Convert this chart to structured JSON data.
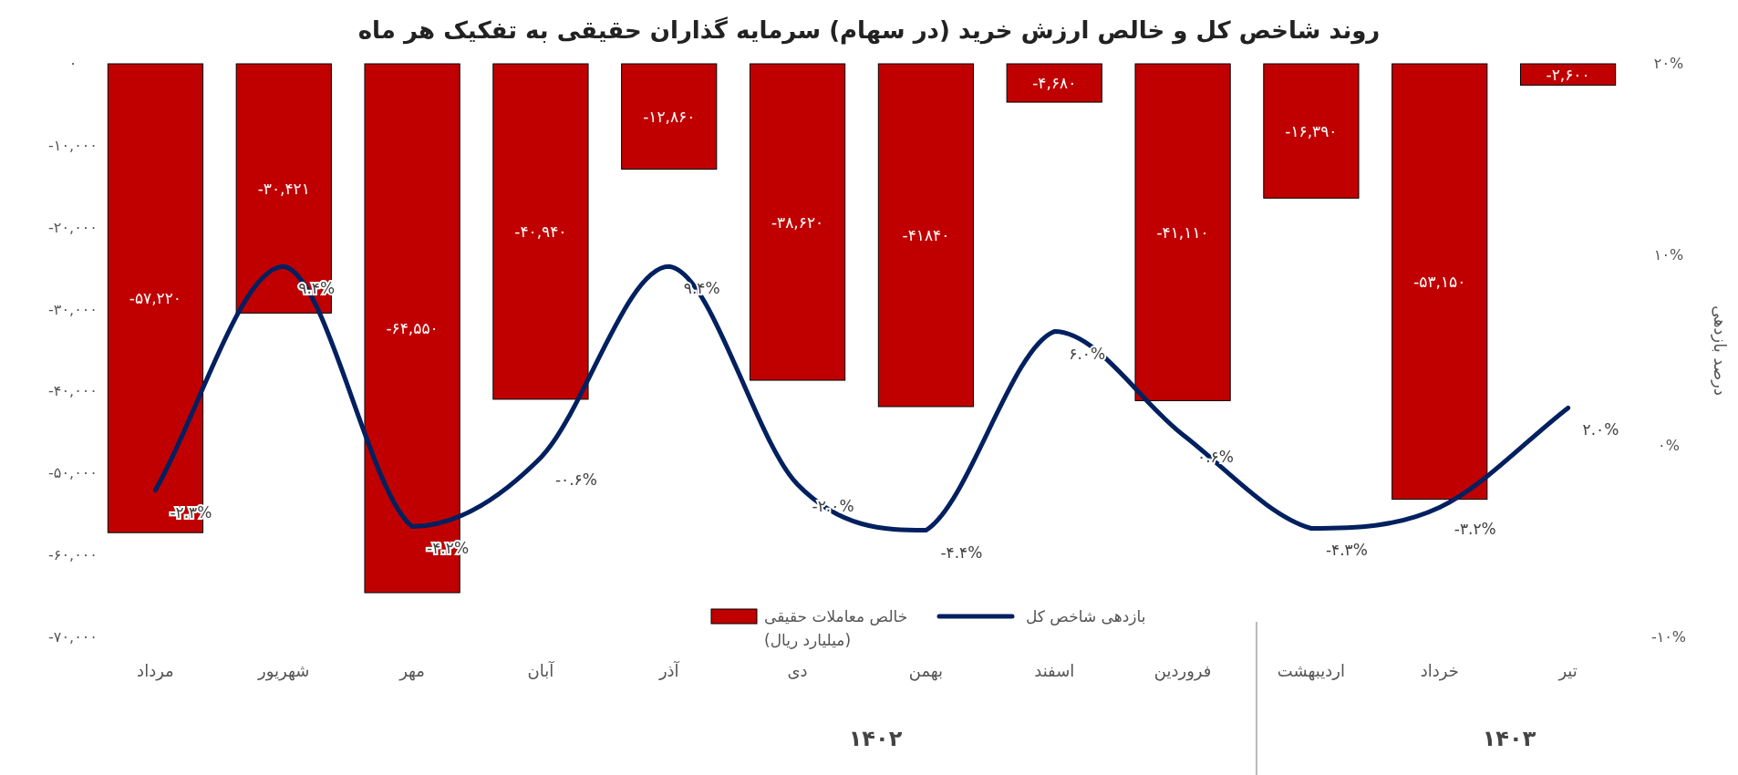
{
  "chart_data": {
    "type": "bar",
    "title": "روند شاخص کل و خالص ارزش خرید (در سهام) سرمایه گذاران حقیقی به تفکیک هر ماه",
    "y2label": "درصد بازدهی",
    "categories": [
      "مرداد",
      "شهریور",
      "مهر",
      "آبان",
      "آذر",
      "دی",
      "بهمن",
      "اسفند",
      "فروردین",
      "اردیبهشت",
      "خرداد",
      "تیر"
    ],
    "series": [
      {
        "name": "خالص معاملات حقیقی (میلیارد ریال)",
        "color": "#c00000",
        "values": [
          -57220,
          -30421,
          -64550,
          -40940,
          -12860,
          -38620,
          -41840,
          -4680,
          -41110,
          -16390,
          -53150,
          -2600
        ],
        "value_labels": [
          "-۵۷,۲۲۰",
          "-۳۰,۴۲۱",
          "-۶۴,۵۵۰",
          "-۴۰,۹۴۰",
          "-۱۲,۸۶۰",
          "-۳۸,۶۲۰",
          "-۴۱۸۴۰",
          "-۴,۶۸۰",
          "-۴۱,۱۱۰",
          "-۱۶,۳۹۰",
          "-۵۳,۱۵۰",
          "-۲,۶۰۰"
        ]
      },
      {
        "name": "بازدهی شاخص کل",
        "type": "line",
        "axis": "y2",
        "color": "#002060",
        "values": [
          -2.3,
          9.4,
          -4.2,
          -0.6,
          9.4,
          -2.0,
          -4.4,
          6.0,
          0.6,
          -4.3,
          -3.2,
          2.0
        ],
        "value_labels": [
          "-۲.۳%",
          "۹.۴%",
          "-۴.۲%",
          "-۰.۶%",
          "۹.۴%",
          "-۲.۰%",
          "-۴.۴%",
          "۶.۰%",
          "۰.۶%",
          "-۴.۳%",
          "-۳.۲%",
          "۲.۰%"
        ]
      }
    ],
    "ylim": [
      -70000,
      0
    ],
    "yticks": [
      {
        "value": 0,
        "label": "۰"
      },
      {
        "value": -10000,
        "label": "-۱۰,۰۰۰"
      },
      {
        "value": -20000,
        "label": "-۲۰,۰۰۰"
      },
      {
        "value": -30000,
        "label": "-۳۰,۰۰۰"
      },
      {
        "value": -40000,
        "label": "-۴۰,۰۰۰"
      },
      {
        "value": -50000,
        "label": "-۵۰,۰۰۰"
      },
      {
        "value": -60000,
        "label": "-۶۰,۰۰۰"
      },
      {
        "value": -70000,
        "label": "-۷۰,۰۰۰"
      }
    ],
    "y2lim": [
      -10,
      20
    ],
    "y2ticks": [
      {
        "value": 20,
        "label": "۲۰%"
      },
      {
        "value": 10,
        "label": "۱۰%"
      },
      {
        "value": 0,
        "label": "۰%"
      },
      {
        "value": -10,
        "label": "-۱۰%"
      }
    ],
    "annotations": [
      "۱۴۰۲",
      "۱۴۰۳"
    ],
    "legend": "bottom",
    "grid": false
  }
}
